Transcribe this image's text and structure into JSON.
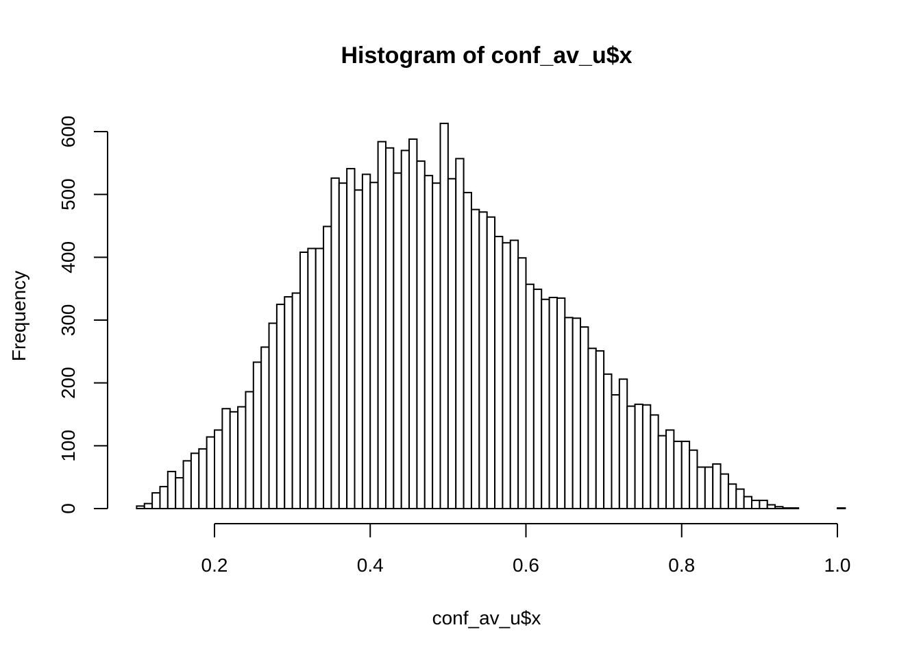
{
  "chart_data": {
    "type": "bar",
    "title": "Histogram of conf_av_u$x",
    "xlabel": "conf_av_u$x",
    "ylabel": "Frequency",
    "xlim": [
      0.1,
      1.0
    ],
    "ylim": [
      0,
      600
    ],
    "x_ticks": [
      "0.2",
      "0.4",
      "0.6",
      "0.8",
      "1.0"
    ],
    "y_ticks": [
      "0",
      "100",
      "200",
      "300",
      "400",
      "500",
      "600"
    ],
    "bin_width": 0.01,
    "bin_start": 0.1,
    "values": [
      4,
      8,
      25,
      35,
      59,
      49,
      76,
      88,
      95,
      114,
      125,
      159,
      154,
      162,
      186,
      233,
      257,
      295,
      325,
      337,
      343,
      408,
      414,
      414,
      449,
      526,
      518,
      541,
      507,
      532,
      519,
      584,
      574,
      534,
      570,
      588,
      553,
      530,
      518,
      613,
      525,
      557,
      503,
      476,
      472,
      464,
      433,
      423,
      427,
      399,
      357,
      349,
      333,
      336,
      335,
      304,
      303,
      289,
      255,
      251,
      214,
      181,
      206,
      163,
      166,
      165,
      149,
      116,
      125,
      107,
      107,
      93,
      66,
      66,
      71,
      55,
      39,
      31,
      19,
      13,
      13,
      6,
      3,
      1,
      1,
      0,
      0,
      0,
      0,
      0,
      1
    ],
    "grid": false,
    "legend": "none"
  }
}
